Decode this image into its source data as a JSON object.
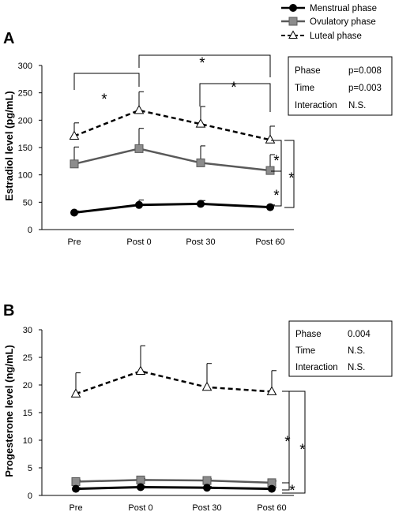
{
  "legend": [
    {
      "name": "Menstrual phase",
      "marker": "circle"
    },
    {
      "name": "Ovulatory phase",
      "marker": "square"
    },
    {
      "name": "Luteal phase",
      "marker": "triangle"
    }
  ],
  "colors": {
    "menstrual": "#000000",
    "ovulatory": "#595959",
    "luteal": "#000000"
  },
  "chart_data": [
    {
      "type": "line",
      "panel": "A",
      "ylabel": "Estradiol level (pg/mL)",
      "ylim": [
        0,
        300
      ],
      "yticks": [
        "0",
        "50",
        "100",
        "150",
        "200",
        "250",
        "300"
      ],
      "categories": [
        "Pre",
        "Post 0",
        "Post 30",
        "Post 60"
      ],
      "series": [
        {
          "name": "Menstrual phase",
          "values": [
            31,
            45,
            47,
            41
          ],
          "errors": [
            3,
            9,
            6,
            4
          ]
        },
        {
          "name": "Ovulatory phase",
          "values": [
            120,
            148,
            122,
            108
          ],
          "errors": [
            31,
            37,
            31,
            29
          ]
        },
        {
          "name": "Luteal phase",
          "values": [
            171,
            218,
            193,
            164
          ],
          "errors": [
            24,
            34,
            32,
            25
          ]
        }
      ],
      "stats": [
        {
          "label": "Phase",
          "value": "p=0.008"
        },
        {
          "label": "Time",
          "value": "p=0.003"
        },
        {
          "label": "Interaction",
          "value": "N.S."
        }
      ],
      "annotation_symbol": "*"
    },
    {
      "type": "line",
      "panel": "B",
      "ylabel": "Progesterone level (ng/mL)",
      "ylim": [
        0,
        30
      ],
      "yticks": [
        "0",
        "5",
        "10",
        "15",
        "20",
        "25",
        "30"
      ],
      "categories": [
        "Pre",
        "Post 0",
        "Post 30",
        "Post 60"
      ],
      "series": [
        {
          "name": "Menstrual phase",
          "values": [
            1.2,
            1.5,
            1.4,
            1.2
          ],
          "errors": [
            0.2,
            0.2,
            0.2,
            0.2
          ]
        },
        {
          "name": "Ovulatory phase",
          "values": [
            2.5,
            2.8,
            2.7,
            2.3
          ],
          "errors": [
            0.3,
            0.3,
            0.3,
            0.3
          ]
        },
        {
          "name": "Luteal phase",
          "values": [
            18.4,
            22.5,
            19.6,
            18.8
          ],
          "errors": [
            3.8,
            4.6,
            4.3,
            3.8
          ]
        }
      ],
      "stats": [
        {
          "label": "Phase",
          "value": "0.004"
        },
        {
          "label": "Time",
          "value": "N.S."
        },
        {
          "label": "Interaction",
          "value": "N.S."
        }
      ],
      "annotation_symbol": "*"
    }
  ]
}
